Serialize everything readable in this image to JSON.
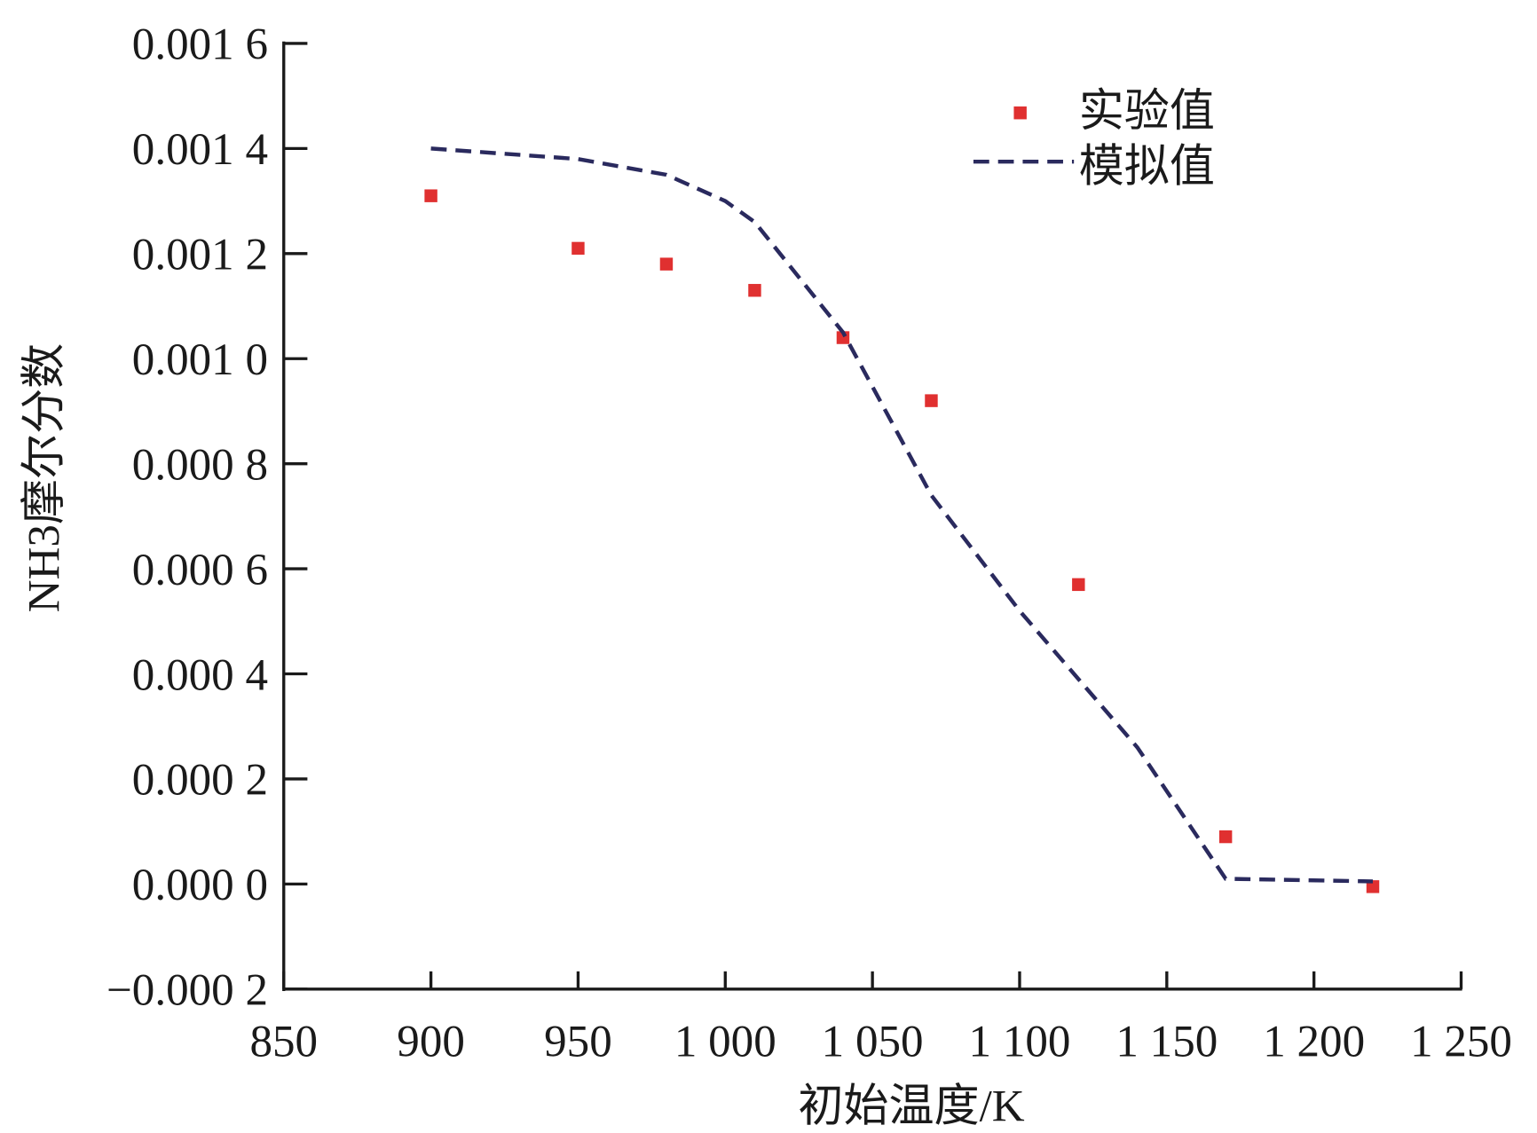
{
  "chart_data": {
    "type": "scatter",
    "title": "",
    "xlabel": "初始温度/K",
    "ylabel": "NH3摩尔分数",
    "xlim": [
      850,
      1250
    ],
    "ylim": [
      -0.0002,
      0.0016
    ],
    "xticks": [
      850,
      900,
      950,
      1000,
      1050,
      1100,
      1150,
      1200,
      1250
    ],
    "xtick_labels": [
      "850",
      "900",
      "950",
      "1 000",
      "1 050",
      "1 100",
      "1 150",
      "1 200",
      "1 250"
    ],
    "yticks": [
      -0.0002,
      0,
      0.0002,
      0.0004,
      0.0006,
      0.0008,
      0.001,
      0.0012,
      0.0014,
      0.0016
    ],
    "ytick_labels": [
      "−0.000 2",
      "0.000 0",
      "0.000 2",
      "0.000 4",
      "0.000 6",
      "0.000 8",
      "0.001 0",
      "0.001 2",
      "0.001 4",
      "0.001 6"
    ],
    "grid": false,
    "legend_position": "top-right",
    "series": [
      {
        "name": "实验值",
        "kind": "scatter",
        "color": "#e03030",
        "x": [
          900,
          950,
          980,
          1010,
          1040,
          1070,
          1120,
          1170,
          1220
        ],
        "y": [
          0.00131,
          0.00121,
          0.00118,
          0.00113,
          0.00104,
          0.00092,
          0.00057,
          9e-05,
          -5e-06
        ]
      },
      {
        "name": "模拟值",
        "kind": "line",
        "dash": true,
        "color": "#2a2a5e",
        "x": [
          900,
          950,
          980,
          1000,
          1010,
          1040,
          1070,
          1100,
          1140,
          1170,
          1220
        ],
        "y": [
          0.0014,
          0.00138,
          0.00135,
          0.0013,
          0.00126,
          0.00105,
          0.00074,
          0.00052,
          0.00026,
          1e-05,
          5e-06
        ]
      }
    ]
  }
}
